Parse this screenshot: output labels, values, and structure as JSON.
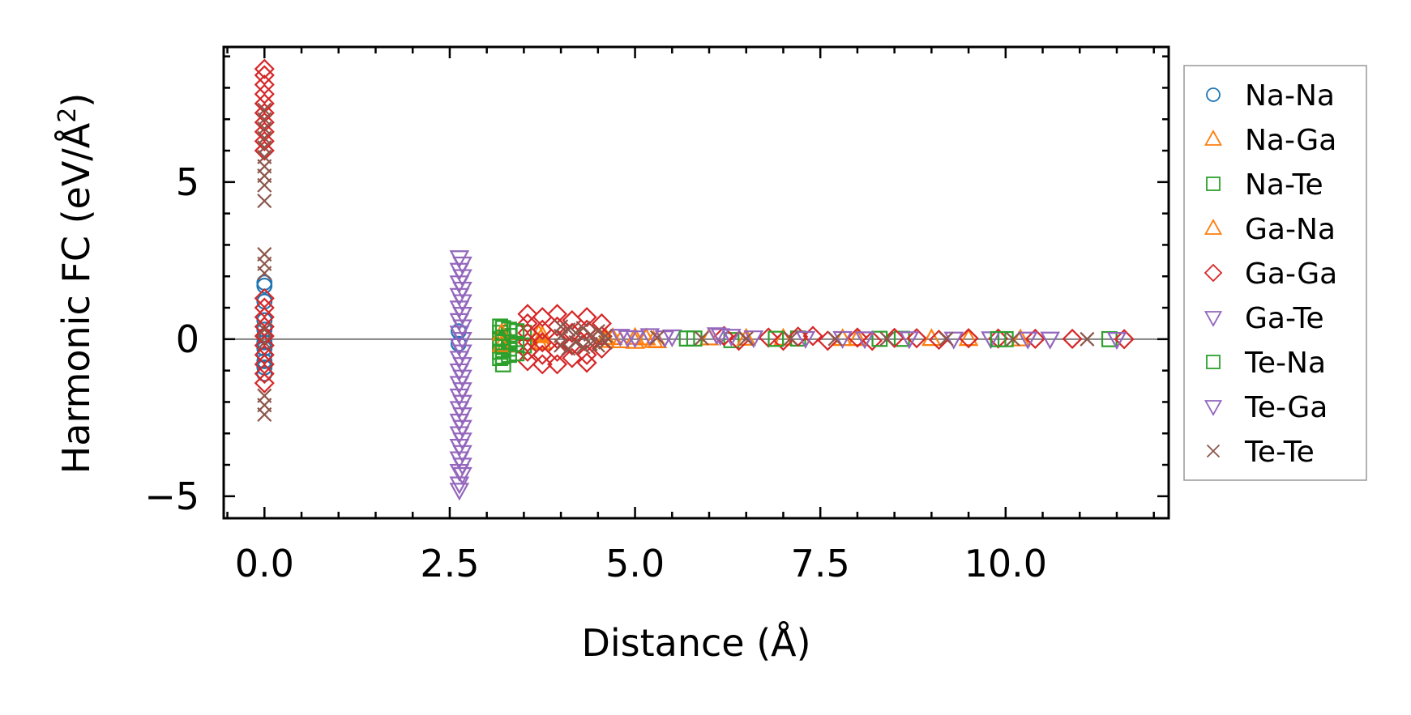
{
  "chart_data": {
    "type": "scatter",
    "xlabel": "Distance (Å)",
    "ylabel": "Harmonic FC (eV/Å²)",
    "ylabel_base": "Harmonic FC (eV/Å",
    "ylabel_sup": "2",
    "ylabel_close": ")",
    "xlim": [
      -0.55,
      12.2
    ],
    "ylim": [
      -5.7,
      9.3
    ],
    "xticks": [
      0.0,
      2.5,
      5.0,
      7.5,
      10.0
    ],
    "xtick_labels": [
      "0.0",
      "2.5",
      "5.0",
      "7.5",
      "10.0"
    ],
    "yticks": [
      -5,
      0,
      5
    ],
    "ytick_labels": [
      "−5",
      "0",
      "5"
    ],
    "zero_line": true,
    "legend_position": "outside-right",
    "series": [
      {
        "name": "Na-Na",
        "marker": "circle",
        "color": "#1f77b4",
        "points": [
          [
            0,
            1.8
          ],
          [
            0,
            1.7
          ],
          [
            0,
            1.2
          ],
          [
            0,
            0.6
          ],
          [
            0,
            0.3
          ],
          [
            0,
            0.1
          ],
          [
            0,
            -0.1
          ],
          [
            0,
            -0.3
          ],
          [
            0,
            -0.5
          ],
          [
            0,
            -0.7
          ],
          [
            0,
            -0.9
          ],
          [
            0,
            -1.1
          ],
          [
            2.62,
            0.25
          ],
          [
            2.62,
            -0.15
          ]
        ]
      },
      {
        "name": "Na-Ga",
        "marker": "triangle-up",
        "color": "#ff7f0e",
        "points": [
          [
            3.25,
            0.2
          ],
          [
            3.25,
            -0.2
          ],
          [
            3.7,
            0.15
          ],
          [
            3.7,
            -0.1
          ],
          [
            4.6,
            0.05
          ],
          [
            4.6,
            -0.05
          ],
          [
            5.0,
            0.05
          ],
          [
            5.0,
            -0.08
          ],
          [
            5.25,
            -0.05
          ],
          [
            6.0,
            0.03
          ],
          [
            7.0,
            0.02
          ],
          [
            8.0,
            0.01
          ],
          [
            9.0,
            0.01
          ],
          [
            10.2,
            0.0
          ]
        ]
      },
      {
        "name": "Na-Te",
        "marker": "square",
        "color": "#2ca02c",
        "points": [
          [
            3.18,
            0.4
          ],
          [
            3.18,
            0.2
          ],
          [
            3.18,
            0.0
          ],
          [
            3.18,
            -0.2
          ],
          [
            3.18,
            -0.4
          ],
          [
            3.18,
            -0.6
          ],
          [
            3.3,
            0.3
          ],
          [
            3.3,
            0.1
          ],
          [
            3.3,
            -0.1
          ],
          [
            3.3,
            -0.3
          ],
          [
            3.3,
            -0.5
          ],
          [
            3.5,
            0.2
          ],
          [
            3.5,
            -0.2
          ],
          [
            5.8,
            0.02
          ],
          [
            6.3,
            -0.03
          ],
          [
            7.2,
            0.02
          ],
          [
            8.6,
            0.01
          ],
          [
            10.0,
            0.0
          ],
          [
            11.4,
            0.0
          ]
        ]
      },
      {
        "name": "Ga-Na",
        "marker": "triangle-up",
        "color": "#ff7f0e",
        "points": [
          [
            3.2,
            0.18
          ],
          [
            3.2,
            -0.18
          ],
          [
            3.75,
            0.1
          ],
          [
            3.75,
            -0.12
          ],
          [
            4.7,
            0.04
          ],
          [
            4.8,
            -0.06
          ],
          [
            5.15,
            0.03
          ],
          [
            5.3,
            -0.06
          ],
          [
            6.5,
            0.02
          ],
          [
            7.8,
            0.01
          ],
          [
            9.5,
            0.01
          ]
        ]
      },
      {
        "name": "Ga-Ga",
        "marker": "diamond",
        "color": "#d62728",
        "points": [
          [
            0,
            8.6
          ],
          [
            0,
            8.4
          ],
          [
            0,
            8.1
          ],
          [
            0,
            7.8
          ],
          [
            0,
            7.5
          ],
          [
            0,
            7.2
          ],
          [
            0,
            6.9
          ],
          [
            0,
            6.6
          ],
          [
            0,
            6.3
          ],
          [
            0,
            6.0
          ],
          [
            0,
            1.3
          ],
          [
            0,
            1.0
          ],
          [
            0,
            0.7
          ],
          [
            0,
            0.4
          ],
          [
            0,
            0.1
          ],
          [
            0,
            -0.2
          ],
          [
            0,
            -0.5
          ],
          [
            0,
            -0.8
          ],
          [
            0,
            -1.1
          ],
          [
            0,
            -1.4
          ],
          [
            3.55,
            0.8
          ],
          [
            3.55,
            0.5
          ],
          [
            3.55,
            0.2
          ],
          [
            3.55,
            -0.1
          ],
          [
            3.55,
            -0.4
          ],
          [
            3.55,
            -0.7
          ],
          [
            3.75,
            0.7
          ],
          [
            3.75,
            0.3
          ],
          [
            3.75,
            -0.1
          ],
          [
            3.75,
            -0.5
          ],
          [
            3.75,
            -0.8
          ],
          [
            3.95,
            0.8
          ],
          [
            3.95,
            0.4
          ],
          [
            3.95,
            0.0
          ],
          [
            3.95,
            -0.4
          ],
          [
            3.95,
            -0.8
          ],
          [
            4.15,
            0.6
          ],
          [
            4.15,
            0.2
          ],
          [
            4.15,
            -0.2
          ],
          [
            4.15,
            -0.6
          ],
          [
            4.35,
            0.7
          ],
          [
            4.35,
            0.3
          ],
          [
            4.35,
            -0.1
          ],
          [
            4.35,
            -0.5
          ],
          [
            4.35,
            -0.75
          ],
          [
            4.55,
            0.5
          ],
          [
            4.55,
            0.1
          ],
          [
            4.55,
            -0.3
          ],
          [
            6.2,
            0.1
          ],
          [
            6.4,
            -0.05
          ],
          [
            6.8,
            0.05
          ],
          [
            7.0,
            -0.05
          ],
          [
            7.2,
            0.08
          ],
          [
            7.4,
            0.1
          ],
          [
            7.6,
            -0.05
          ],
          [
            8.0,
            0.05
          ],
          [
            8.2,
            -0.05
          ],
          [
            8.5,
            0.04
          ],
          [
            8.8,
            0.03
          ],
          [
            9.1,
            -0.02
          ],
          [
            9.5,
            0.03
          ],
          [
            9.9,
            0.02
          ],
          [
            10.4,
            0.01
          ],
          [
            10.9,
            0.01
          ],
          [
            11.6,
            0.0
          ]
        ]
      },
      {
        "name": "Ga-Te",
        "marker": "triangle-down",
        "color": "#9467bd",
        "points": [
          [
            2.63,
            2.6
          ],
          [
            2.63,
            2.2
          ],
          [
            2.63,
            1.8
          ],
          [
            2.63,
            1.4
          ],
          [
            2.63,
            1.0
          ],
          [
            2.63,
            0.6
          ],
          [
            2.63,
            0.2
          ],
          [
            2.63,
            -0.2
          ],
          [
            2.63,
            -0.6
          ],
          [
            2.63,
            -1.0
          ],
          [
            2.63,
            -1.4
          ],
          [
            2.63,
            -1.8
          ],
          [
            2.63,
            -2.2
          ],
          [
            2.63,
            -2.6
          ],
          [
            2.63,
            -3.0
          ],
          [
            2.63,
            -3.4
          ],
          [
            2.63,
            -3.8
          ],
          [
            2.63,
            -4.2
          ],
          [
            2.63,
            -4.6
          ],
          [
            2.63,
            -4.8
          ],
          [
            4.8,
            0.1
          ],
          [
            5.0,
            0.05
          ],
          [
            5.2,
            0.12
          ],
          [
            5.5,
            0.08
          ],
          [
            6.1,
            0.15
          ],
          [
            6.3,
            0.1
          ],
          [
            6.6,
            0.05
          ],
          [
            7.8,
            0.03
          ],
          [
            8.7,
            0.02
          ],
          [
            9.8,
            0.02
          ],
          [
            10.6,
            0.01
          ],
          [
            11.5,
            0.0
          ]
        ]
      },
      {
        "name": "Te-Na",
        "marker": "square",
        "color": "#2ca02c",
        "points": [
          [
            3.22,
            0.35
          ],
          [
            3.22,
            0.05
          ],
          [
            3.22,
            -0.25
          ],
          [
            3.22,
            -0.55
          ],
          [
            3.22,
            -0.8
          ],
          [
            3.4,
            0.25
          ],
          [
            3.4,
            -0.15
          ],
          [
            3.4,
            -0.45
          ],
          [
            5.7,
            0.02
          ],
          [
            6.9,
            0.01
          ],
          [
            8.3,
            0.01
          ],
          [
            9.9,
            0.0
          ]
        ]
      },
      {
        "name": "Te-Ga",
        "marker": "triangle-down",
        "color": "#9467bd",
        "points": [
          [
            2.67,
            2.4
          ],
          [
            2.67,
            2.0
          ],
          [
            2.67,
            1.6
          ],
          [
            2.67,
            1.2
          ],
          [
            2.67,
            0.8
          ],
          [
            2.67,
            0.4
          ],
          [
            2.67,
            0.0
          ],
          [
            2.67,
            -0.4
          ],
          [
            2.67,
            -0.8
          ],
          [
            2.67,
            -1.2
          ],
          [
            2.67,
            -1.6
          ],
          [
            2.67,
            -2.0
          ],
          [
            2.67,
            -2.4
          ],
          [
            2.67,
            -2.8
          ],
          [
            2.67,
            -3.2
          ],
          [
            2.67,
            -3.6
          ],
          [
            2.67,
            -4.0
          ],
          [
            2.67,
            -4.3
          ],
          [
            4.9,
            0.06
          ],
          [
            5.4,
            0.05
          ],
          [
            6.15,
            0.12
          ],
          [
            7.3,
            0.03
          ],
          [
            8.1,
            0.02
          ],
          [
            9.3,
            0.01
          ],
          [
            10.3,
            0.01
          ]
        ]
      },
      {
        "name": "Te-Te",
        "marker": "x",
        "color": "#8c564b",
        "points": [
          [
            0,
            7.3
          ],
          [
            0,
            7.0
          ],
          [
            0,
            6.7
          ],
          [
            0,
            6.4
          ],
          [
            0,
            6.1
          ],
          [
            0,
            5.8
          ],
          [
            0,
            5.5
          ],
          [
            0,
            5.2
          ],
          [
            0,
            4.9
          ],
          [
            0,
            4.4
          ],
          [
            0,
            2.7
          ],
          [
            0,
            2.4
          ],
          [
            0,
            2.1
          ],
          [
            0,
            0.3
          ],
          [
            0,
            -0.1
          ],
          [
            0,
            -1.8
          ],
          [
            0,
            -2.1
          ],
          [
            0,
            -2.4
          ],
          [
            4.0,
            0.4
          ],
          [
            4.0,
            0.1
          ],
          [
            4.0,
            -0.2
          ],
          [
            4.1,
            0.3
          ],
          [
            4.1,
            -0.3
          ],
          [
            4.2,
            0.2
          ],
          [
            4.2,
            -0.1
          ],
          [
            4.3,
            0.35
          ],
          [
            4.3,
            -0.25
          ],
          [
            4.4,
            0.15
          ],
          [
            4.4,
            -0.15
          ],
          [
            4.5,
            0.25
          ],
          [
            4.5,
            -0.2
          ],
          [
            4.6,
            0.1
          ],
          [
            4.6,
            -0.1
          ],
          [
            5.3,
            0.05
          ],
          [
            5.9,
            0.03
          ],
          [
            6.5,
            0.02
          ],
          [
            7.1,
            0.02
          ],
          [
            7.7,
            0.01
          ],
          [
            8.4,
            0.01
          ],
          [
            9.2,
            0.01
          ],
          [
            10.1,
            0.0
          ],
          [
            11.1,
            0.0
          ]
        ]
      }
    ]
  }
}
